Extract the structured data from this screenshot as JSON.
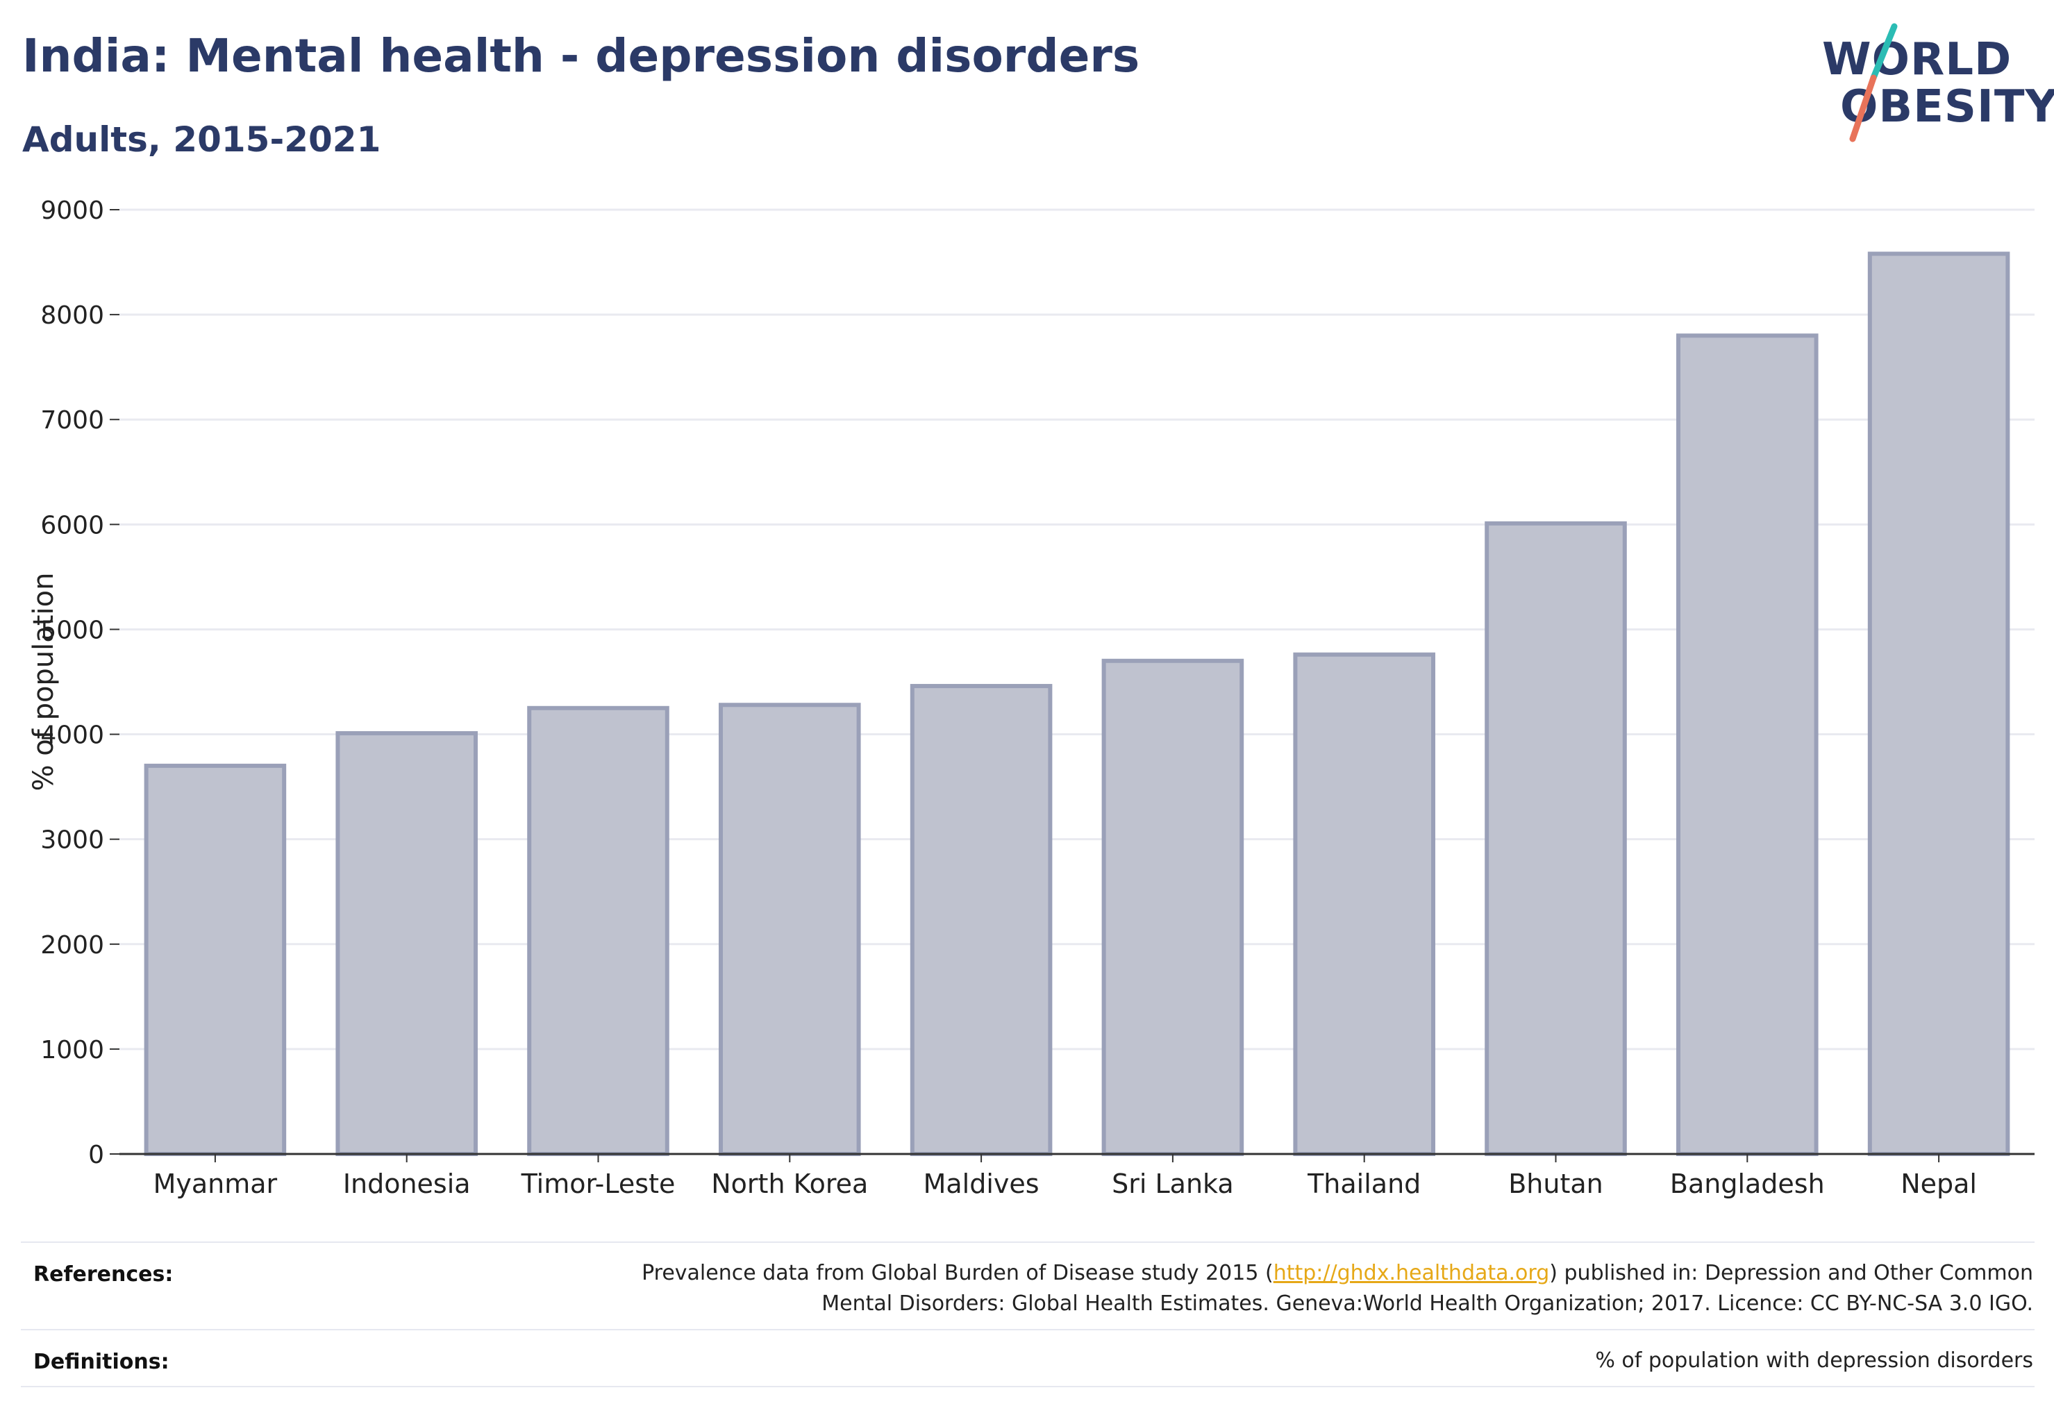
{
  "header": {
    "title": "India: Mental health - depression disorders",
    "subtitle": "Adults, 2015-2021"
  },
  "logo": {
    "line1": "WORLD",
    "line2": "OBESITY",
    "accent_colors": [
      "#2bbcb4",
      "#e8735a"
    ]
  },
  "chart_data": {
    "type": "bar",
    "categories": [
      "Myanmar",
      "Indonesia",
      "Timor-Leste",
      "North Korea",
      "Maldives",
      "Sri Lanka",
      "Thailand",
      "Bhutan",
      "Bangladesh",
      "Nepal"
    ],
    "values": [
      3700,
      4010,
      4250,
      4280,
      4460,
      4700,
      4760,
      6010,
      7800,
      8580
    ],
    "ylabel": "% of population",
    "xlabel": "",
    "ylim": [
      0,
      9000
    ],
    "yticks": [
      0,
      1000,
      2000,
      3000,
      4000,
      5000,
      6000,
      7000,
      8000,
      9000
    ],
    "grid": true,
    "bar_fill": "#bfc2cf",
    "bar_stroke": "#9aa0b8"
  },
  "footer": {
    "references_label": "References:",
    "references_text_before": "Prevalence data from Global Burden of Disease study 2015 (",
    "references_link": "http://ghdx.healthdata.org",
    "references_text_after": ") published in: Depression and Other Common",
    "references_line2": "Mental Disorders: Global Health Estimates. Geneva:World Health Organization; 2017. Licence: CC BY-NC-SA 3.0 IGO.",
    "definitions_label": "Definitions:",
    "definitions_text": "% of population with depression disorders"
  }
}
